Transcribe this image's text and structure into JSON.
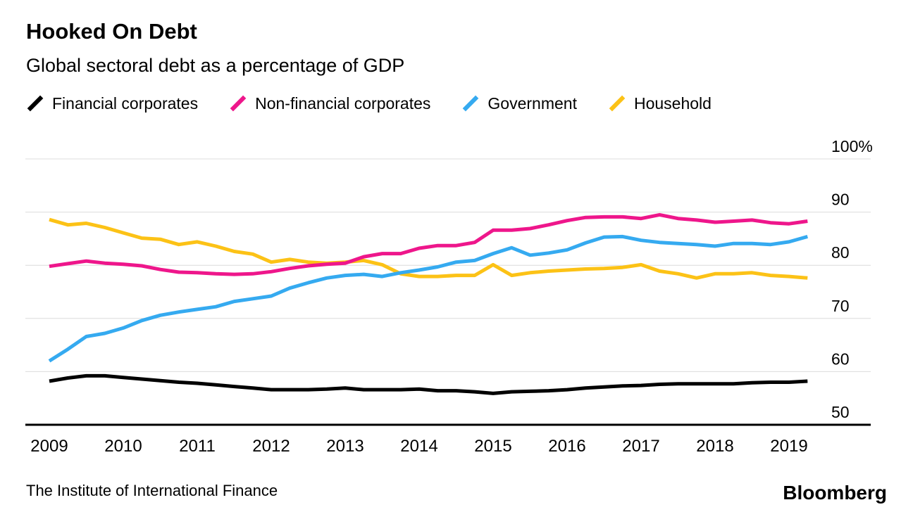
{
  "title": "Hooked On Debt",
  "subtitle": "Global sectoral debt as a percentage of GDP",
  "legend": [
    {
      "label": "Financial corporates",
      "color": "#000000"
    },
    {
      "label": "Non-financial corporates",
      "color": "#ee168b"
    },
    {
      "label": "Government",
      "color": "#35aaf0"
    },
    {
      "label": "Household",
      "color": "#fcc216"
    }
  ],
  "source": "The Institute of International Finance",
  "brand": "Bloomberg",
  "chart_data": {
    "type": "line",
    "title": "Hooked On Debt",
    "subtitle": "Global sectoral debt as a percentage of GDP",
    "x_start": 2009,
    "x_step": 0.25,
    "x_tick_labels": [
      "2009",
      "2010",
      "2011",
      "2012",
      "2013",
      "2014",
      "2015",
      "2016",
      "2017",
      "2018",
      "2019"
    ],
    "y_ticks": [
      50,
      60,
      70,
      80,
      90,
      100
    ],
    "y_tick_labels": [
      "50",
      "60",
      "70",
      "80",
      "90",
      "100%"
    ],
    "ylim": [
      50,
      100
    ],
    "grid": true,
    "legend_position": "top",
    "grid_color": "#dcdcdc",
    "series": [
      {
        "name": "Household",
        "color": "#fcc216",
        "values": [
          88.6,
          87.6,
          87.9,
          87.1,
          86.1,
          85.1,
          84.9,
          83.9,
          84.4,
          83.6,
          82.6,
          82.1,
          80.6,
          81.1,
          80.6,
          80.4,
          80.6,
          80.9,
          80.1,
          78.4,
          77.9,
          77.9,
          78.1,
          78.1,
          80.1,
          78.1,
          78.6,
          78.9,
          79.1,
          79.3,
          79.4,
          79.6,
          80.1,
          78.9,
          78.4,
          77.6,
          78.4,
          78.4,
          78.6,
          78.1,
          77.9,
          77.6
        ]
      },
      {
        "name": "Government",
        "color": "#35aaf0",
        "values": [
          62.0,
          64.2,
          66.6,
          67.2,
          68.2,
          69.6,
          70.6,
          71.2,
          71.7,
          72.2,
          73.2,
          73.7,
          74.2,
          75.7,
          76.7,
          77.6,
          78.1,
          78.3,
          77.9,
          78.6,
          79.1,
          79.7,
          80.6,
          80.9,
          82.2,
          83.3,
          81.9,
          82.3,
          82.9,
          84.2,
          85.3,
          85.4,
          84.7,
          84.3,
          84.1,
          83.9,
          83.6,
          84.1,
          84.1,
          83.9,
          84.4,
          85.4
        ]
      },
      {
        "name": "Non-financial corporates",
        "color": "#ee168b",
        "values": [
          79.8,
          80.3,
          80.8,
          80.4,
          80.2,
          79.9,
          79.2,
          78.7,
          78.6,
          78.4,
          78.3,
          78.4,
          78.8,
          79.4,
          79.9,
          80.2,
          80.4,
          81.6,
          82.2,
          82.2,
          83.2,
          83.7,
          83.7,
          84.3,
          86.6,
          86.6,
          86.9,
          87.6,
          88.4,
          89.0,
          89.1,
          89.1,
          88.8,
          89.5,
          88.8,
          88.5,
          88.1,
          88.3,
          88.5,
          88.0,
          87.8,
          88.3
        ]
      },
      {
        "name": "Financial corporates",
        "color": "#000000",
        "values": [
          58.2,
          58.8,
          59.2,
          59.2,
          58.9,
          58.6,
          58.3,
          58.0,
          57.8,
          57.5,
          57.2,
          56.9,
          56.6,
          56.6,
          56.6,
          56.7,
          56.9,
          56.6,
          56.6,
          56.6,
          56.7,
          56.4,
          56.4,
          56.2,
          55.9,
          56.2,
          56.3,
          56.4,
          56.6,
          56.9,
          57.1,
          57.3,
          57.4,
          57.6,
          57.7,
          57.7,
          57.7,
          57.7,
          57.9,
          58.0,
          58.0,
          58.2
        ]
      }
    ]
  }
}
